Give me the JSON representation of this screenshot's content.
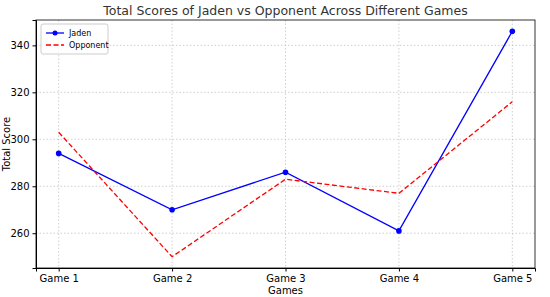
{
  "chart_data": {
    "type": "line",
    "title": "Total Scores of Jaden vs Opponent Across Different Games",
    "x_label": "Games",
    "y_label": "Total Score",
    "categories": [
      "Game 1",
      "Game 2",
      "Game 3",
      "Game 4",
      "Game 5"
    ],
    "series": [
      {
        "name": "Jaden",
        "color": "#0000ff",
        "values": [
          294,
          270,
          286,
          261,
          346
        ],
        "marker": "circle",
        "line_style": "solid"
      },
      {
        "name": "Opponent",
        "color": "#ff0000",
        "values": [
          303,
          250,
          283,
          277,
          316
        ],
        "marker": "none",
        "line_style": "dashed"
      }
    ],
    "ylim": [
      245.2,
      350.8
    ],
    "yticks": [
      260,
      280,
      300,
      320,
      340
    ],
    "grid": true,
    "legend": "upper-left"
  }
}
